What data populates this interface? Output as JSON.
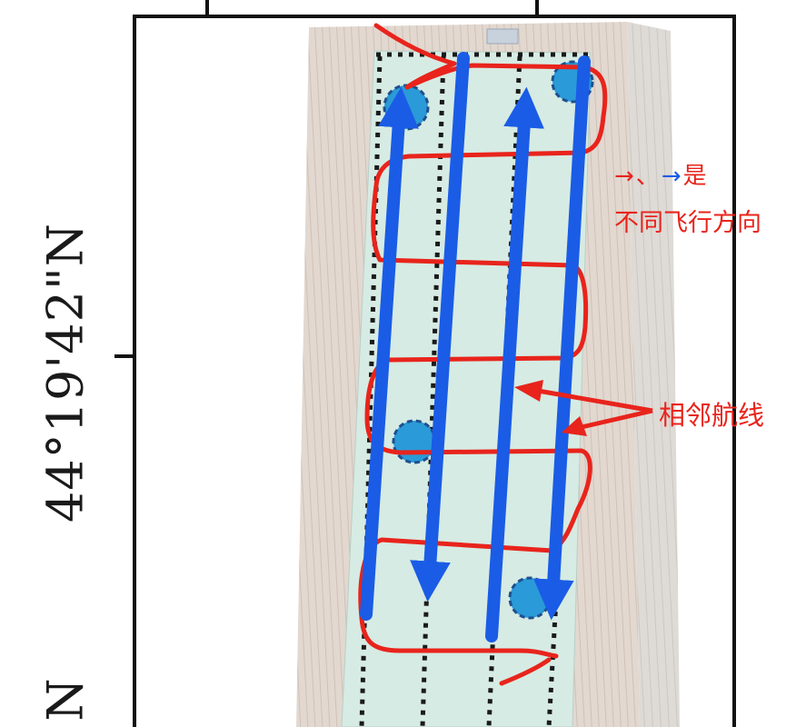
{
  "map": {
    "lat_tick_label": "44°19'42\"N",
    "lower_axis_label": "N"
  },
  "legend": {
    "red_arrow": "→",
    "separator": "、",
    "blue_arrow": "→",
    "suffix": "是",
    "line2": "不同飞行方向"
  },
  "annotation": {
    "adjacent_lines": "相邻航线"
  },
  "colors": {
    "track_red": "#e8241c",
    "flight_blue": "#1a5ce6",
    "field_fill": "#d6ebe3",
    "marker_blue": "#2a9ad8"
  },
  "markers": [
    "ground-control-point",
    "ground-control-point",
    "ground-control-point",
    "ground-control-point"
  ]
}
